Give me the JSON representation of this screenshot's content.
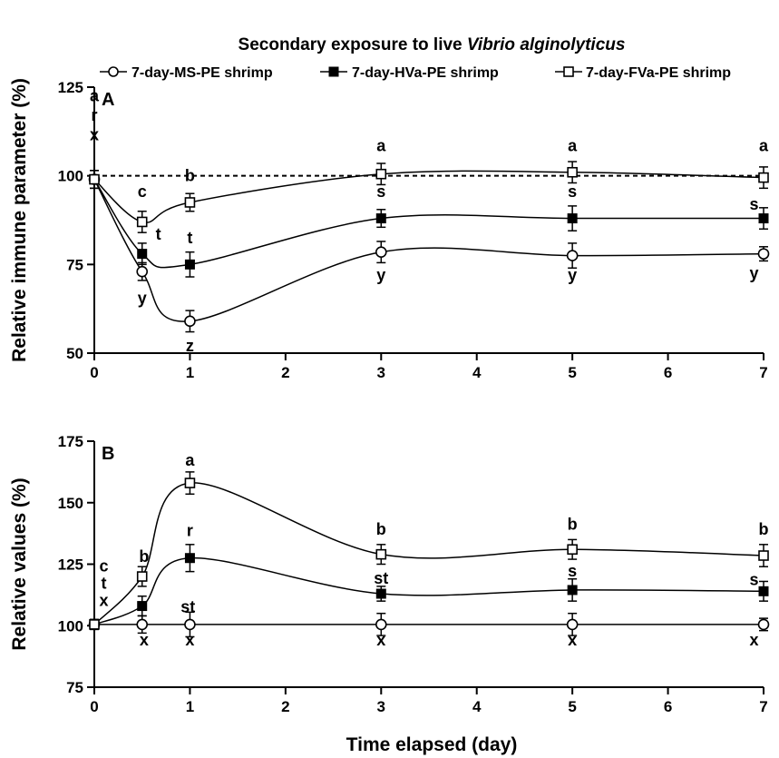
{
  "figure": {
    "title_prefix": "Secondary exposure to live ",
    "title_italic": "Vibrio alginolyticus",
    "legend": [
      {
        "name": "7-day-MS-PE shrimp",
        "marker": "open-circle"
      },
      {
        "name": "7-day-HVa-PE shrimp",
        "marker": "filled-square"
      },
      {
        "name": "7-day-FVa-PE shrimp",
        "marker": "open-square"
      }
    ],
    "xlabel": "Time elapsed (day)"
  },
  "chart_data": [
    {
      "type": "line",
      "panel_label": "A",
      "ylabel": "Relative immune parameter (%)",
      "xlim": [
        0,
        7
      ],
      "ylim": [
        50,
        125
      ],
      "xticks": [
        0,
        1,
        2,
        3,
        4,
        5,
        6,
        7
      ],
      "yticks": [
        50,
        75,
        100,
        125
      ],
      "reference_line": {
        "y": 100,
        "style": "dashed"
      },
      "x": [
        0,
        0.5,
        1,
        3,
        5,
        7
      ],
      "series": [
        {
          "name": "7-day-MS-PE shrimp",
          "marker": "open-circle",
          "values": [
            99,
            73,
            59,
            78.5,
            77.5,
            78
          ],
          "errors": [
            2.5,
            2.5,
            3,
            3,
            3.5,
            2
          ],
          "letters": [
            "x",
            "y",
            "",
            "y",
            "y",
            "y"
          ],
          "letters_below": [
            "",
            "y",
            "z",
            "y",
            "y",
            "y"
          ]
        },
        {
          "name": "7-day-HVa-PE shrimp",
          "marker": "filled-square",
          "values": [
            99,
            78,
            75,
            88,
            88,
            88
          ],
          "errors": [
            2.5,
            3,
            3.5,
            2.5,
            3.5,
            3
          ]
        },
        {
          "name": "7-day-FVa-PE shrimp",
          "marker": "open-square",
          "values": [
            99,
            87,
            92.5,
            100.5,
            101,
            99.5
          ],
          "errors": [
            2.5,
            3,
            2.5,
            3,
            3,
            3
          ]
        }
      ],
      "annotations": [
        {
          "x": 0,
          "y": 121,
          "text": "a"
        },
        {
          "x": 0,
          "y": 115.5,
          "text": "r"
        },
        {
          "x": 0,
          "y": 110,
          "text": "x"
        },
        {
          "x": 0.5,
          "y": 94,
          "text": "c"
        },
        {
          "x": 0.67,
          "y": 82,
          "text": "t"
        },
        {
          "x": 0.5,
          "y": 64,
          "text": "y"
        },
        {
          "x": 1,
          "y": 98.5,
          "text": "b"
        },
        {
          "x": 1,
          "y": 81,
          "text": "t"
        },
        {
          "x": 1,
          "y": 50.5,
          "text": "z"
        },
        {
          "x": 3,
          "y": 107,
          "text": "a"
        },
        {
          "x": 3,
          "y": 94,
          "text": "s"
        },
        {
          "x": 3,
          "y": 70.5,
          "text": "y"
        },
        {
          "x": 5,
          "y": 107,
          "text": "a"
        },
        {
          "x": 5,
          "y": 94,
          "text": "s"
        },
        {
          "x": 5,
          "y": 70.5,
          "text": "y"
        },
        {
          "x": 7,
          "y": 107,
          "text": "a"
        },
        {
          "x": 6.9,
          "y": 90.5,
          "text": "s"
        },
        {
          "x": 6.9,
          "y": 71,
          "text": "y"
        }
      ]
    },
    {
      "type": "line",
      "panel_label": "B",
      "ylabel": "Relative values (%)",
      "xlim": [
        0,
        7
      ],
      "ylim": [
        75,
        175
      ],
      "xticks": [
        0,
        1,
        2,
        3,
        4,
        5,
        6,
        7
      ],
      "yticks": [
        75,
        100,
        125,
        150,
        175
      ],
      "x": [
        0,
        0.5,
        1,
        3,
        5,
        7
      ],
      "series": [
        {
          "name": "7-day-MS-PE shrimp",
          "marker": "open-circle",
          "values": [
            100.5,
            100.5,
            100.5,
            100.5,
            100.5,
            100.5
          ],
          "errors": [
            2,
            3.5,
            5,
            4.5,
            4.5,
            2.5
          ]
        },
        {
          "name": "7-day-HVa-PE shrimp",
          "marker": "filled-square",
          "values": [
            100.5,
            108,
            127.5,
            113,
            114.5,
            114
          ],
          "errors": [
            2,
            4,
            5.5,
            3,
            4.5,
            4
          ]
        },
        {
          "name": "7-day-FVa-PE shrimp",
          "marker": "open-square",
          "values": [
            100.5,
            120,
            158,
            129,
            131,
            128.5
          ],
          "errors": [
            2,
            4,
            4.5,
            4,
            4,
            4.5
          ]
        }
      ],
      "annotations": [
        {
          "x": 0.1,
          "y": 122,
          "text": "c"
        },
        {
          "x": 0.1,
          "y": 115,
          "text": "t"
        },
        {
          "x": 0.1,
          "y": 108,
          "text": "x"
        },
        {
          "x": 0.52,
          "y": 126,
          "text": "b"
        },
        {
          "x": 0.98,
          "y": 105.5,
          "text": "st"
        },
        {
          "x": 0.52,
          "y": 92,
          "text": "x"
        },
        {
          "x": 1,
          "y": 165,
          "text": "a"
        },
        {
          "x": 1,
          "y": 136.5,
          "text": "r"
        },
        {
          "x": 1,
          "y": 92,
          "text": "x"
        },
        {
          "x": 3,
          "y": 137,
          "text": "b"
        },
        {
          "x": 3,
          "y": 117,
          "text": "st"
        },
        {
          "x": 3,
          "y": 92,
          "text": "x"
        },
        {
          "x": 5,
          "y": 139,
          "text": "b"
        },
        {
          "x": 5,
          "y": 120,
          "text": "s"
        },
        {
          "x": 5,
          "y": 92,
          "text": "x"
        },
        {
          "x": 7,
          "y": 137,
          "text": "b"
        },
        {
          "x": 6.9,
          "y": 116.5,
          "text": "s"
        },
        {
          "x": 6.9,
          "y": 92,
          "text": "x"
        }
      ]
    }
  ]
}
